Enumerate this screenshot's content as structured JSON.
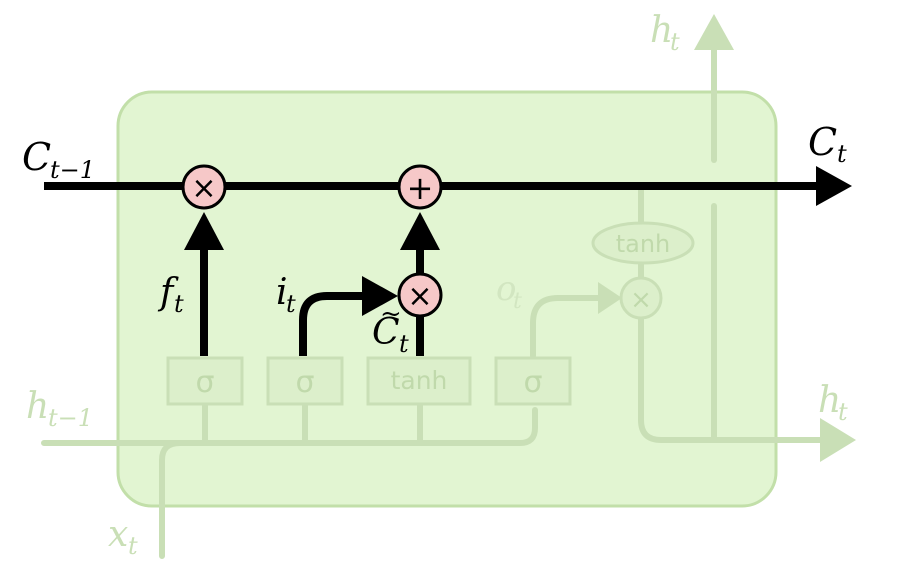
{
  "colors": {
    "cell_fill": "#e2f5d2",
    "cell_border": "#c2dfa9",
    "faded": "#c9dfb6",
    "faded_text": "#b8d7a3",
    "active": "#000000",
    "op_fill": "#f6c8c8"
  },
  "labels": {
    "c_prev": "C",
    "c_prev_sub": "t−1",
    "c_next": "C",
    "c_next_sub": "t",
    "h_prev": "h",
    "h_prev_sub": "t−1",
    "h_next": "h",
    "h_next_sub": "t",
    "h_top": "h",
    "h_top_sub": "t",
    "x_in": "x",
    "x_in_sub": "t",
    "f": "f",
    "f_sub": "t",
    "i": "i",
    "i_sub": "t",
    "o": "o",
    "o_sub": "t",
    "c_tilde": "C",
    "c_tilde_accent": "~",
    "c_tilde_sub": "t"
  },
  "gates": {
    "forget": "σ",
    "input": "σ",
    "candidate": "tanh",
    "output": "σ",
    "output_tanh": "tanh"
  },
  "ops": {
    "forget_mul": "×",
    "add": "+",
    "input_mul": "×",
    "output_mul": "×"
  }
}
